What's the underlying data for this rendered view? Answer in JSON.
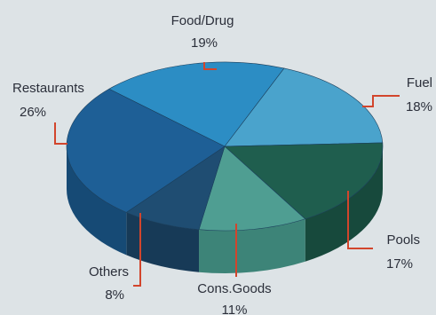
{
  "chart_data": {
    "type": "pie",
    "style": "3d",
    "slices": [
      {
        "label": "Food/Drug",
        "value": 19,
        "display": "19%",
        "color": "#2c8dc4",
        "side": "#1d6790"
      },
      {
        "label": "Fuel",
        "value": 18,
        "display": "18%",
        "color": "#4aa3cc",
        "side": "#2f7ea2"
      },
      {
        "label": "Pools",
        "value": 17,
        "display": "17%",
        "color": "#1f5e4e",
        "side": "#17493c"
      },
      {
        "label": "Cons.Goods",
        "value": 11,
        "display": "11%",
        "color": "#4f9e92",
        "side": "#3d8478"
      },
      {
        "label": "Others",
        "value": 8,
        "display": "8%",
        "color": "#1f4d72",
        "side": "#173a57"
      },
      {
        "label": "Restaurants",
        "value": 26,
        "display": "26%",
        "color": "#1e5f96",
        "side": "#164a75"
      }
    ]
  }
}
